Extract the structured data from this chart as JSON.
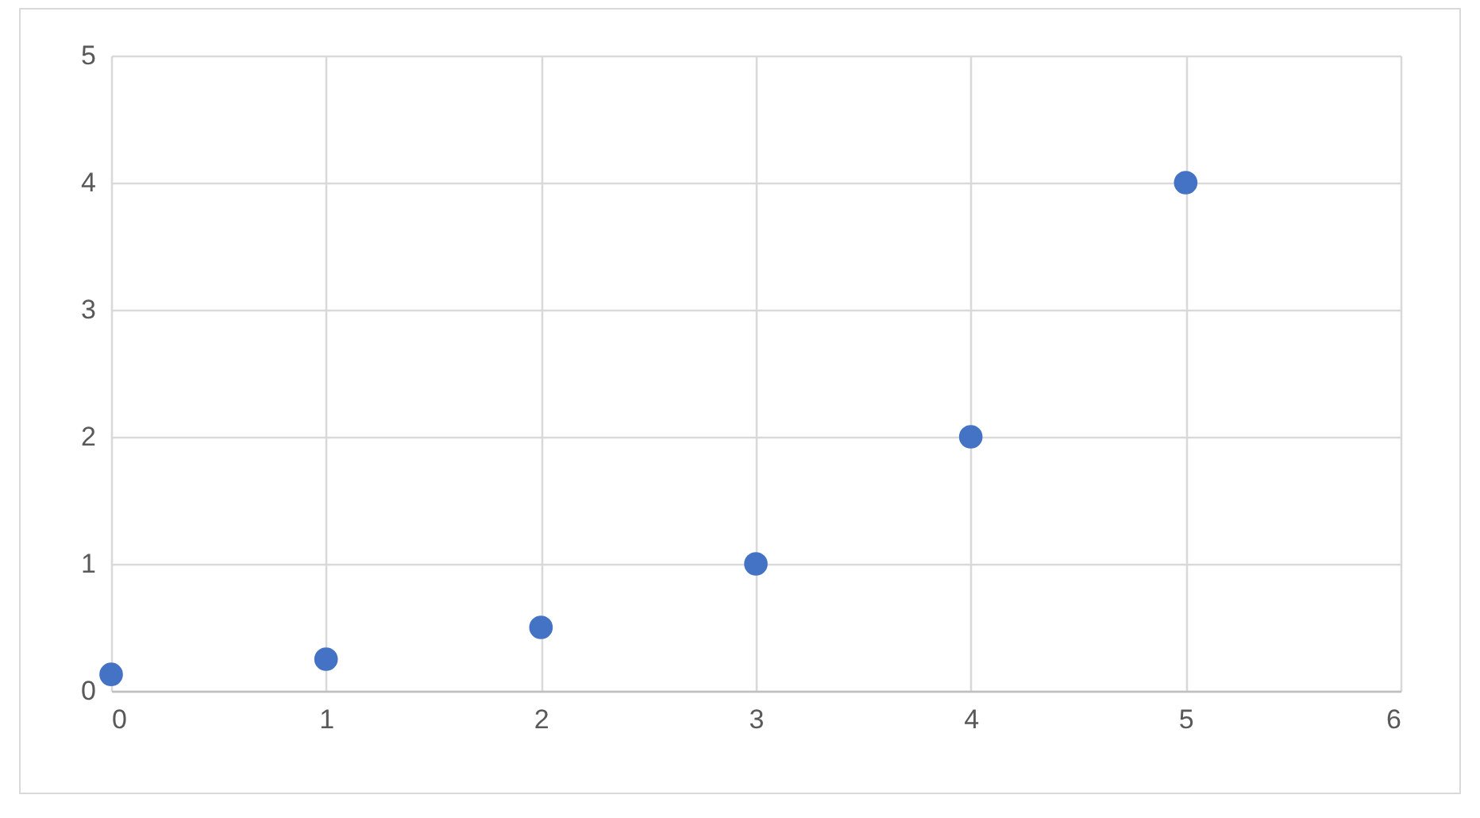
{
  "chart_data": {
    "type": "scatter",
    "x": [
      0,
      1,
      2,
      3,
      4,
      5
    ],
    "series": [
      {
        "color": "#4472c4",
        "values": [
          0.13,
          0.25,
          0.5,
          1,
          2,
          4
        ]
      }
    ],
    "xlim": [
      0,
      6
    ],
    "xticks": [
      0,
      1,
      2,
      3,
      4,
      5,
      6
    ],
    "ylim": [
      0,
      5
    ],
    "yticks": [
      0,
      1,
      2,
      3,
      4,
      5
    ],
    "grid": true,
    "marker": "circle"
  }
}
